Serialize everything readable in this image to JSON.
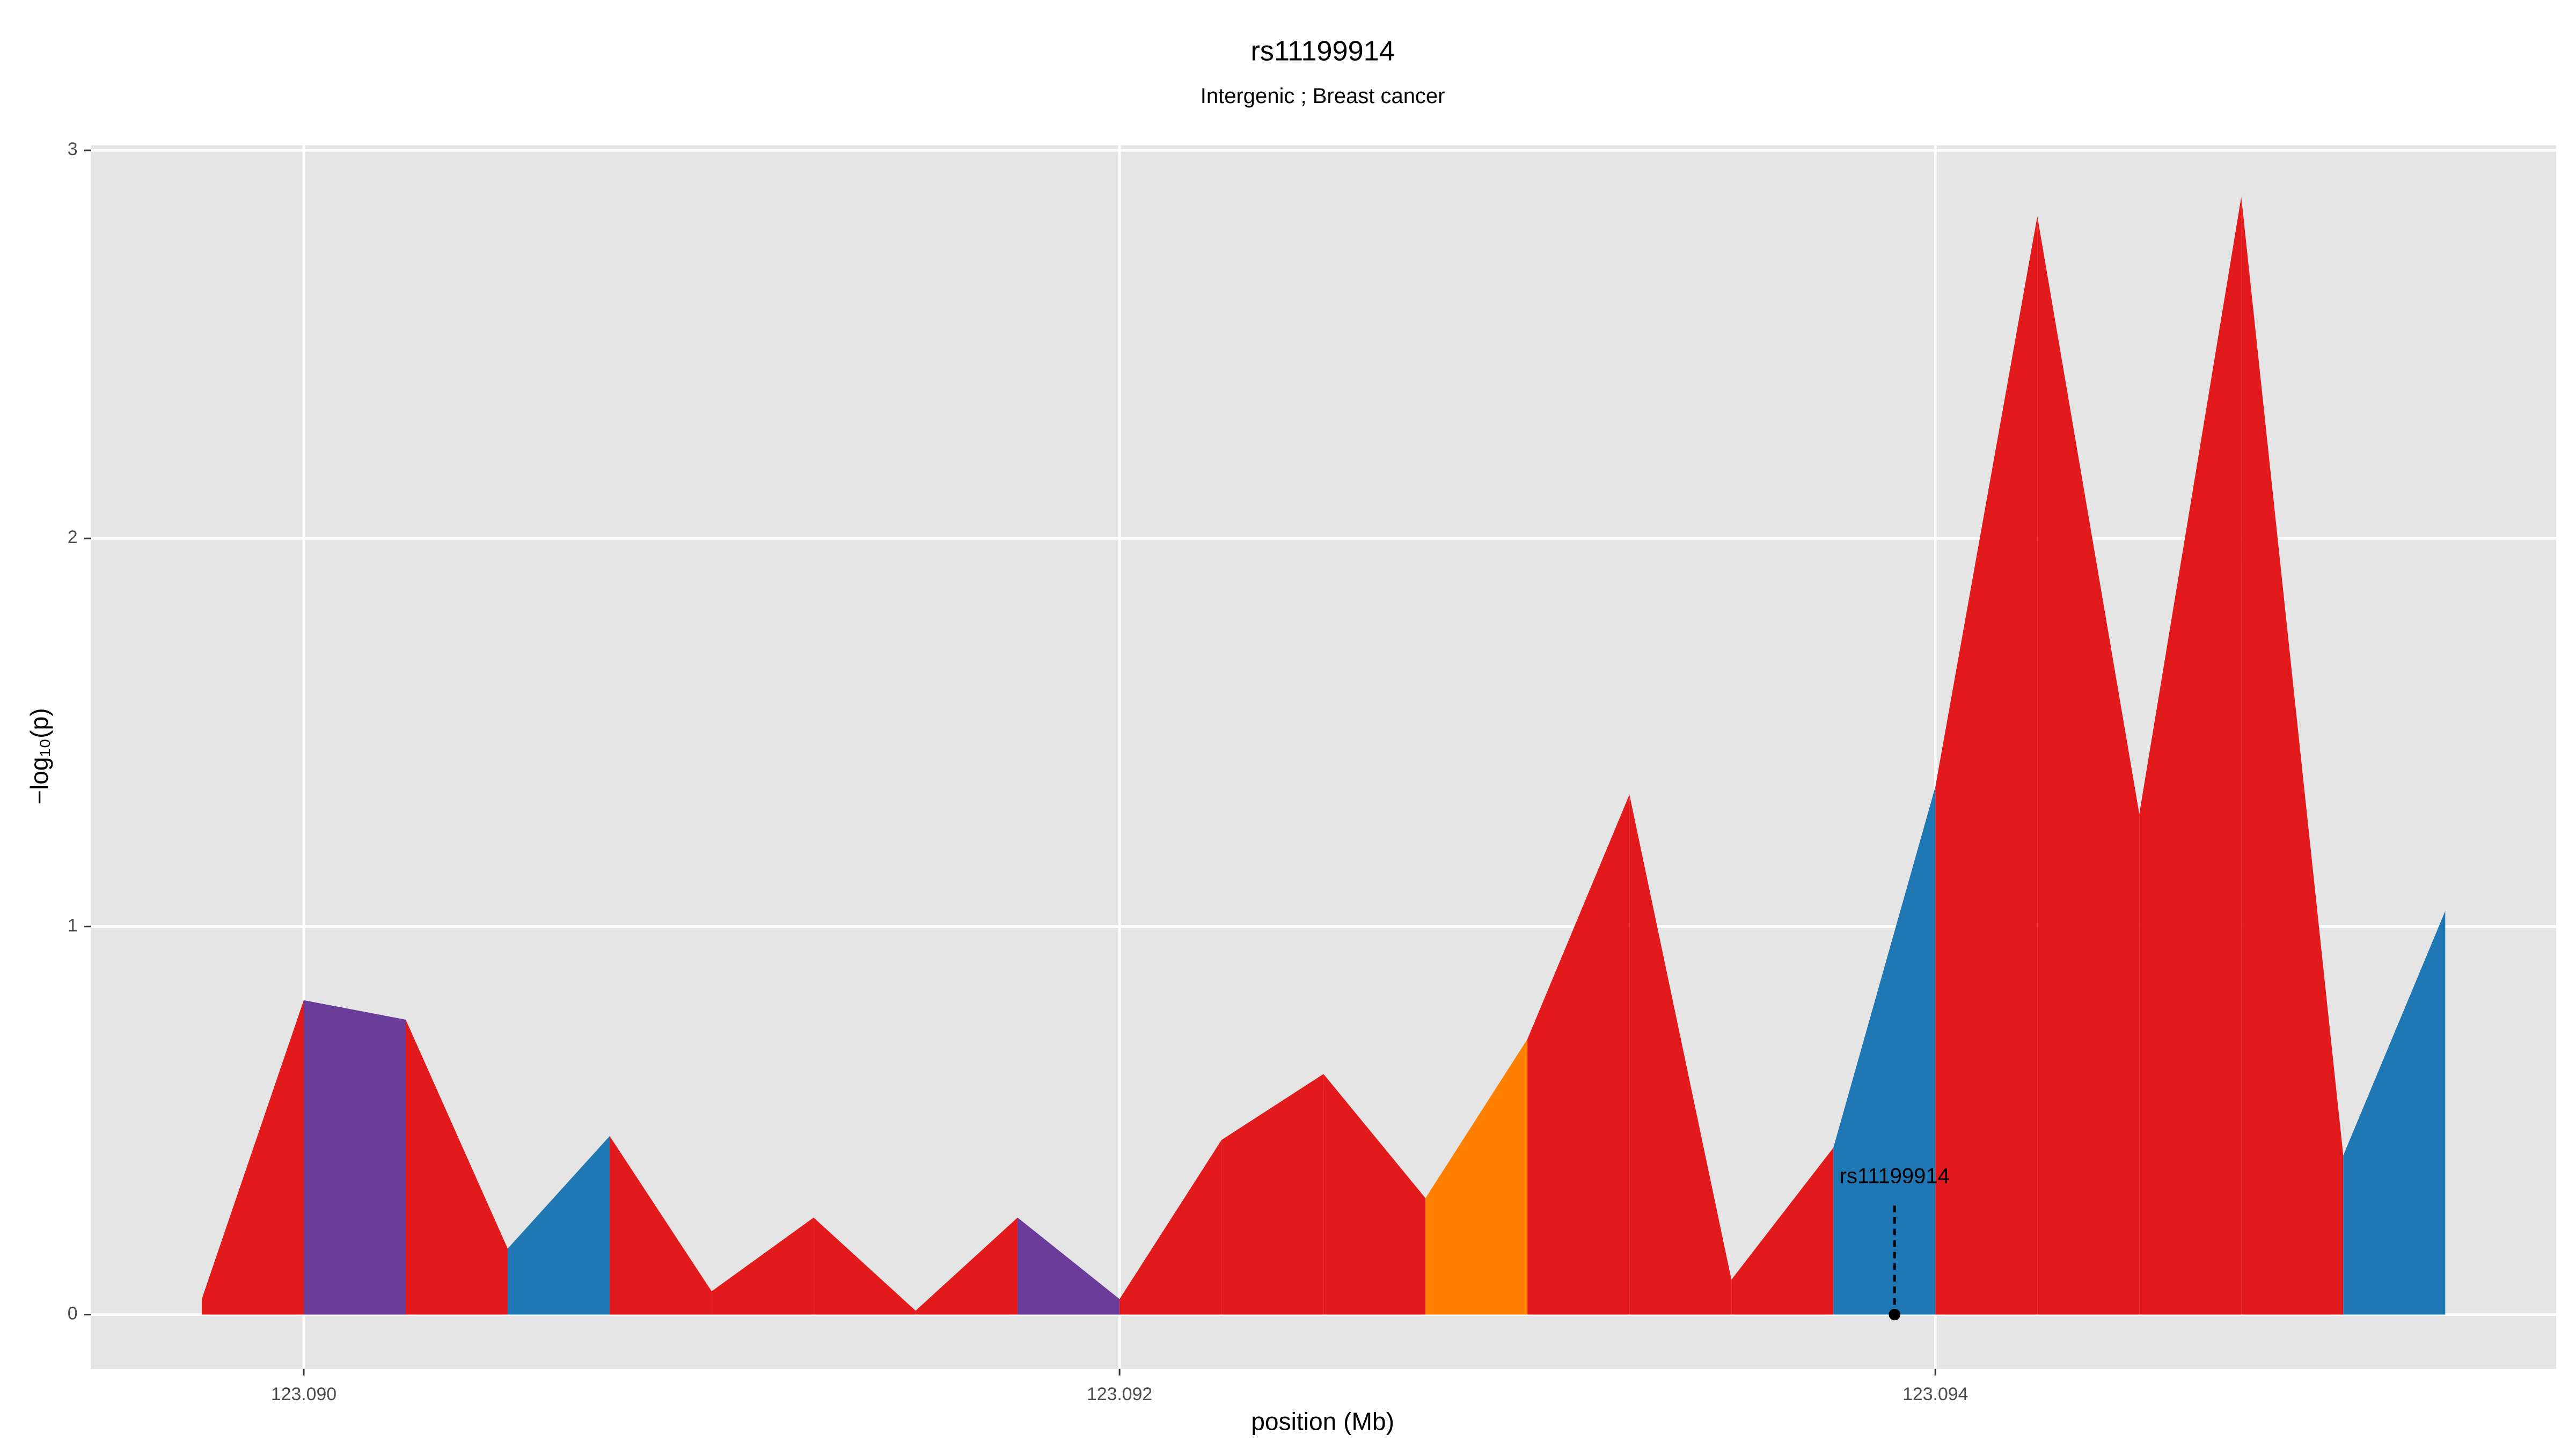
{
  "chart_data": {
    "type": "area",
    "title": "rs11199914",
    "subtitle": "Intergenic ; Breast cancer",
    "x_label": "position (Mb)",
    "y_label": "−log₁₀(p)",
    "x": [
      123.08975,
      123.09,
      123.09025,
      123.0905,
      123.09075,
      123.091,
      123.09125,
      123.0915,
      123.09175,
      123.092,
      123.09225,
      123.0925,
      123.09275,
      123.093,
      123.09325,
      123.0935,
      123.09375,
      123.094,
      123.09425,
      123.0945,
      123.09475,
      123.095,
      123.09525
    ],
    "y": [
      0.04,
      0.81,
      0.76,
      0.17,
      0.46,
      0.06,
      0.25,
      0.01,
      0.25,
      0.04,
      0.45,
      0.62,
      0.3,
      0.71,
      1.34,
      0.09,
      0.43,
      1.36,
      2.83,
      1.29,
      2.88,
      0.41,
      1.04
    ],
    "segment_colors": [
      "#e31a1c",
      "#6a3d9a",
      "#e31a1c",
      "#1f78b4",
      "#e31a1c",
      "#e31a1c",
      "#e31a1c",
      "#e31a1c",
      "#6a3d9a",
      "#e31a1c",
      "#e31a1c",
      "#e31a1c",
      "#ff7f00",
      "#e31a1c",
      "#e31a1c",
      "#e31a1c",
      "#1f78b4",
      "#e31a1c",
      "#e31a1c",
      "#e31a1c",
      "#e31a1c",
      "#1f78b4"
    ],
    "annotation": {
      "label": "rs11199914",
      "x": 123.0939
    },
    "xlim": [
      123.089478,
      123.095522
    ],
    "ylim": [
      -0.14,
      3.013
    ],
    "xticks": [
      {
        "value": 123.09,
        "label": "123.090"
      },
      {
        "value": 123.092,
        "label": "123.092"
      },
      {
        "value": 123.094,
        "label": "123.094"
      }
    ],
    "yticks": [
      0,
      1,
      2,
      3
    ],
    "grid": true
  }
}
